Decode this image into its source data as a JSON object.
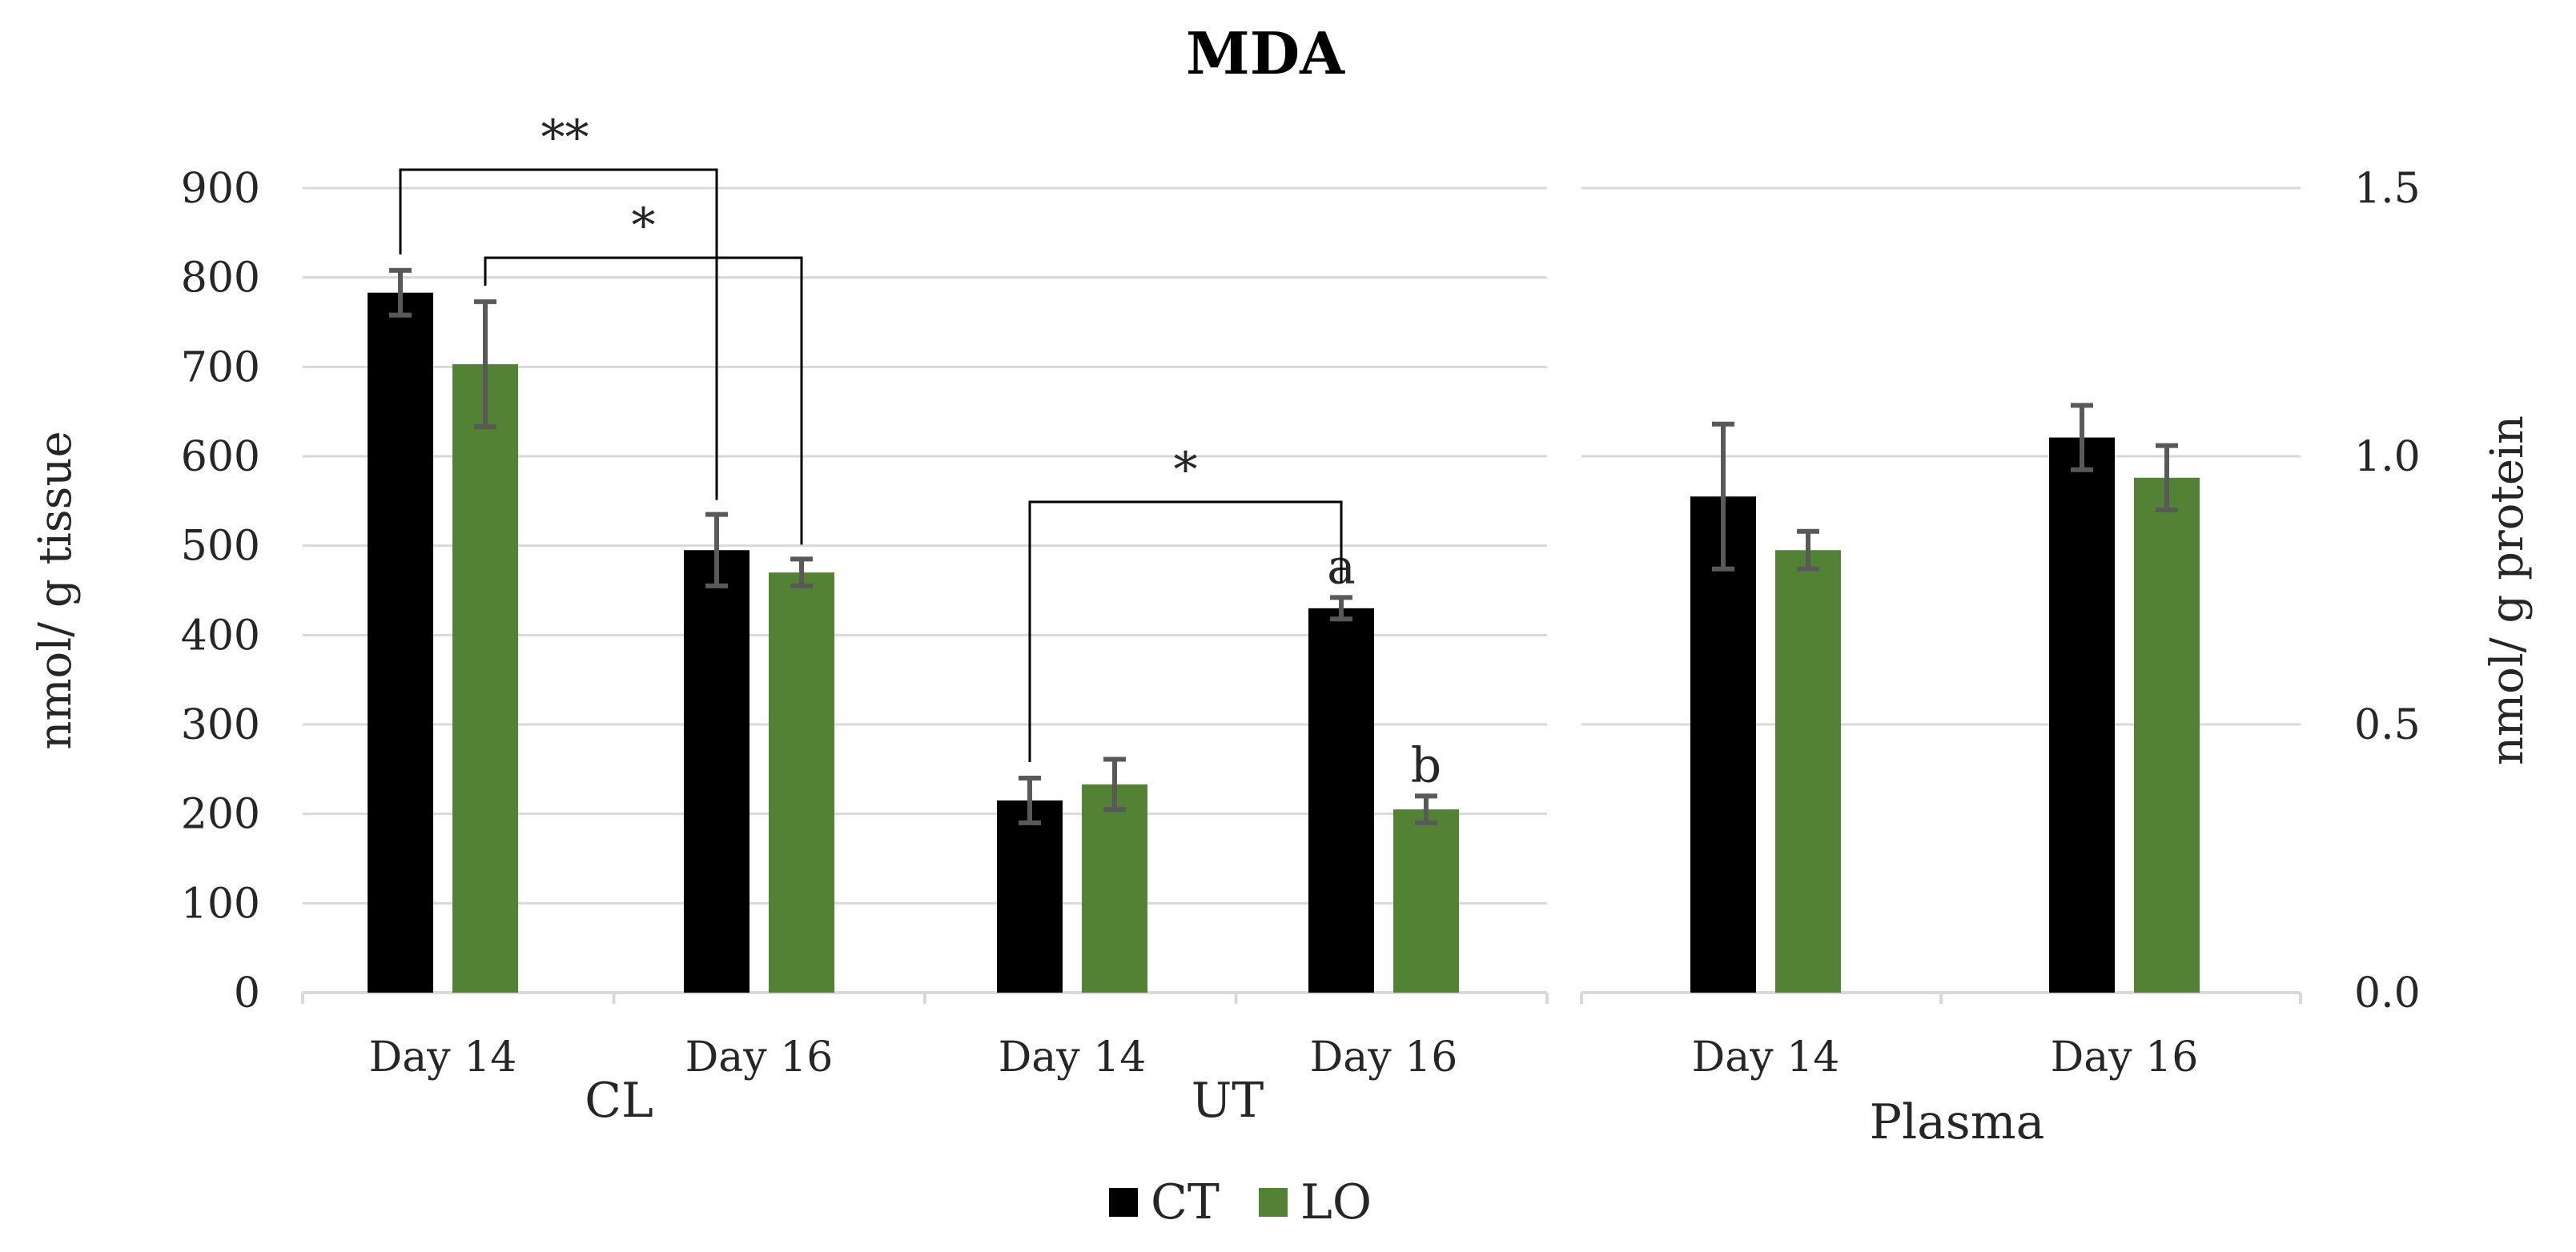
{
  "chart_data": {
    "type": "bar",
    "title": "MDA",
    "series": [
      {
        "name": "CT",
        "color": "#000000"
      },
      {
        "name": "LO",
        "color": "#548235"
      }
    ],
    "panels": [
      {
        "name": "tissue",
        "ylabel": "nmol/ g tissue",
        "y_axis_side": "left",
        "ylim": [
          0,
          900
        ],
        "yticks": [
          "0",
          "100",
          "200",
          "300",
          "400",
          "500",
          "600",
          "700",
          "800",
          "900"
        ],
        "groups": [
          {
            "name": "CL",
            "categories": [
              {
                "label": "Day 14",
                "values": [
                  783,
                  703
                ],
                "errors": [
                  25,
                  70
                ]
              },
              {
                "label": "Day 16",
                "values": [
                  495,
                  470
                ],
                "errors": [
                  40,
                  15
                ]
              }
            ]
          },
          {
            "name": "UT",
            "categories": [
              {
                "label": "Day 14",
                "values": [
                  215,
                  233
                ],
                "errors": [
                  25,
                  28
                ]
              },
              {
                "label": "Day 16",
                "values": [
                  430,
                  205
                ],
                "errors": [
                  12,
                  15
                ],
                "labels": [
                  "a",
                  "b"
                ]
              }
            ]
          }
        ]
      },
      {
        "name": "plasma",
        "ylabel": "nmol/ g protein",
        "y_axis_side": "right",
        "ylim": [
          0,
          1.5
        ],
        "yticks": [
          "0.0",
          "0.5",
          "1.0",
          "1.5"
        ],
        "groups": [
          {
            "name": "Plasma",
            "categories": [
              {
                "label": "Day 14",
                "values": [
                  0.925,
                  0.825
                ],
                "errors": [
                  0.135,
                  0.035
                ]
              },
              {
                "label": "Day 16",
                "values": [
                  1.035,
                  0.96
                ],
                "errors": [
                  0.06,
                  0.06
                ]
              }
            ]
          }
        ]
      }
    ],
    "significance": [
      {
        "from": "CL Day 14 CT",
        "to": "CL Day 16 CT",
        "label": "**"
      },
      {
        "from": "CL Day 14 LO",
        "to": "CL Day 16 LO",
        "label": "*"
      },
      {
        "from": "UT Day 14 CT",
        "to": "UT Day 16 CT",
        "label": "*"
      }
    ],
    "legend": {
      "position": "bottom",
      "entries": [
        "CT",
        "LO"
      ]
    }
  }
}
